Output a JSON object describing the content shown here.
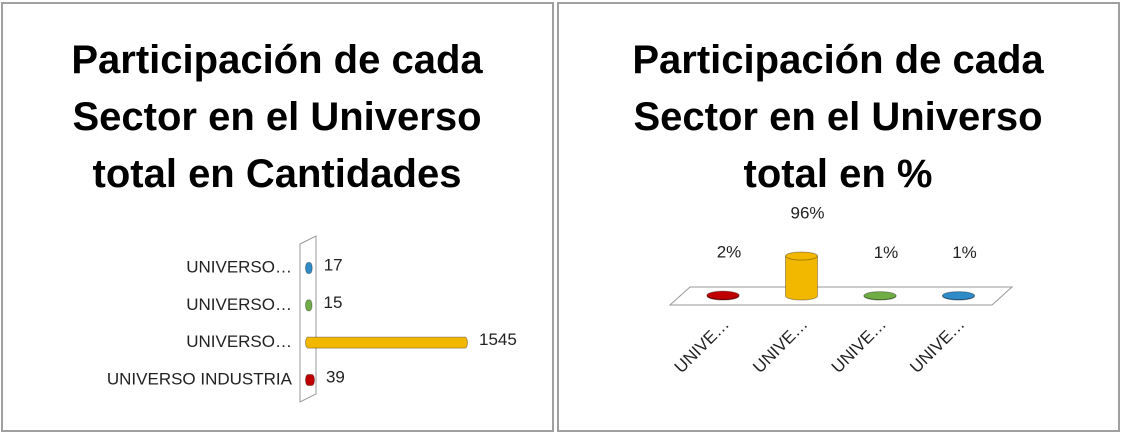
{
  "chart_data": [
    {
      "type": "hbar3d",
      "title": "Participación de cada Sector en el Universo total en Cantidades",
      "categories": [
        "UNIVERSO INDUSTRIA",
        "UNIVERSO…",
        "UNIVERSO…",
        "UNIVERSO…"
      ],
      "values": [
        39,
        1545,
        15,
        17
      ],
      "colors": [
        "#c00000",
        "#f2b800",
        "#70ad47",
        "#2e8bc8"
      ]
    },
    {
      "type": "column3d",
      "title": "Participación de cada Sector en el Universo total en %",
      "categories": [
        "UNIVE…",
        "UNIVE…",
        "UNIVE…",
        "UNIVE…"
      ],
      "values": [
        2,
        96,
        1,
        1
      ],
      "value_labels": [
        "2%",
        "96%",
        "1%",
        "1%"
      ],
      "colors": [
        "#c00000",
        "#f2b800",
        "#70ad47",
        "#2e8bc8"
      ]
    }
  ]
}
